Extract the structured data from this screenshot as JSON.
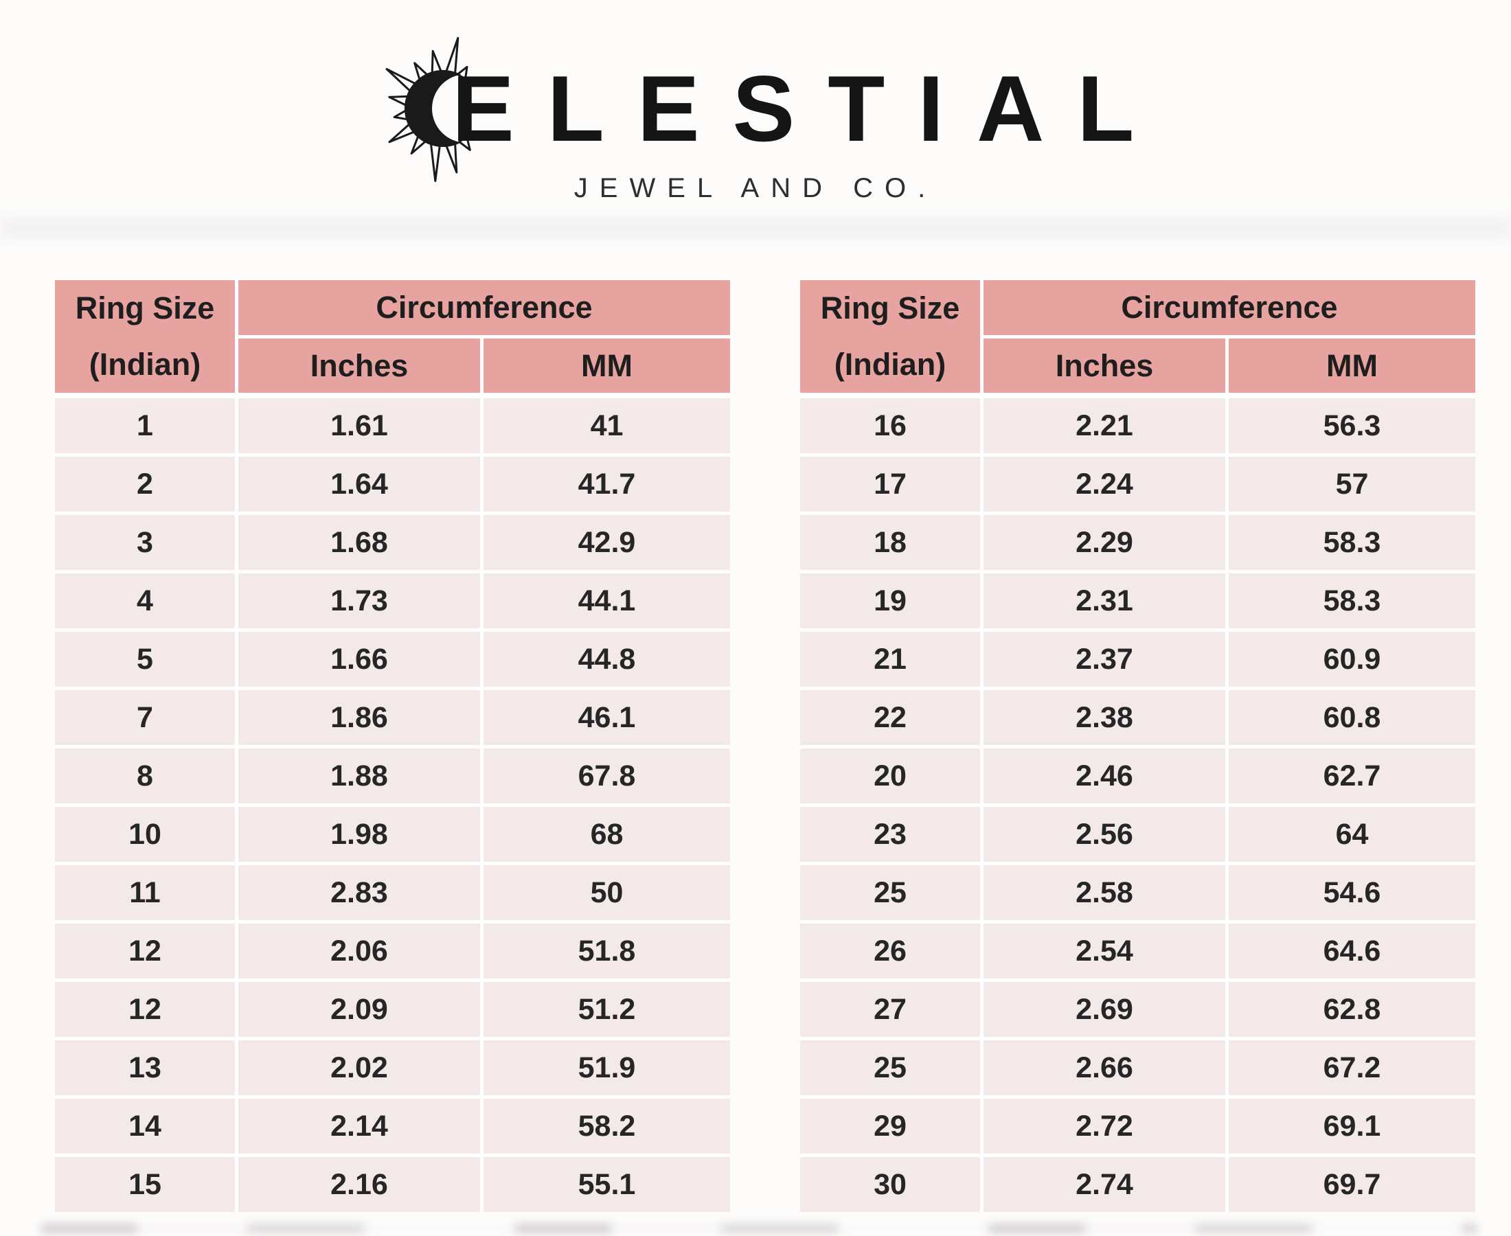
{
  "brand": {
    "name": "CELESTIAL",
    "name_display": "ELESTIAL",
    "tagline": "JEWEL AND CO.",
    "logo_icon": "sun-crescent-icon"
  },
  "colors": {
    "header_bg": "#e7a3a0",
    "row_bg": "#f2e9e8",
    "text": "#262626",
    "page_bg": "#fdfcfb"
  },
  "tables": [
    {
      "header": {
        "ring_size_line1": "Ring Size",
        "ring_size_line2": "(Indian)",
        "circumference": "Circumference",
        "inches": "Inches",
        "mm": "MM"
      },
      "rows": [
        [
          "1",
          "1.61",
          "41"
        ],
        [
          "2",
          "1.64",
          "41.7"
        ],
        [
          "3",
          "1.68",
          "42.9"
        ],
        [
          "4",
          "1.73",
          "44.1"
        ],
        [
          "5",
          "1.66",
          "44.8"
        ],
        [
          "7",
          "1.86",
          "46.1"
        ],
        [
          "8",
          "1.88",
          "67.8"
        ],
        [
          "10",
          "1.98",
          "68"
        ],
        [
          "11",
          "2.83",
          "50"
        ],
        [
          "12",
          "2.06",
          "51.8"
        ],
        [
          "12",
          "2.09",
          "51.2"
        ],
        [
          "13",
          "2.02",
          "51.9"
        ],
        [
          "14",
          "2.14",
          "58.2"
        ],
        [
          "15",
          "2.16",
          "55.1"
        ]
      ]
    },
    {
      "header": {
        "ring_size_line1": "Ring Size",
        "ring_size_line2": "(Indian)",
        "circumference": "Circumference",
        "inches": "Inches",
        "mm": "MM"
      },
      "rows": [
        [
          "16",
          "2.21",
          "56.3"
        ],
        [
          "17",
          "2.24",
          "57"
        ],
        [
          "18",
          "2.29",
          "58.3"
        ],
        [
          "19",
          "2.31",
          "58.3"
        ],
        [
          "21",
          "2.37",
          "60.9"
        ],
        [
          "22",
          "2.38",
          "60.8"
        ],
        [
          "20",
          "2.46",
          "62.7"
        ],
        [
          "23",
          "2.56",
          "64"
        ],
        [
          "25",
          "2.58",
          "54.6"
        ],
        [
          "26",
          "2.54",
          "64.6"
        ],
        [
          "27",
          "2.69",
          "62.8"
        ],
        [
          "25",
          "2.66",
          "67.2"
        ],
        [
          "29",
          "2.72",
          "69.1"
        ],
        [
          "30",
          "2.74",
          "69.7"
        ]
      ]
    }
  ]
}
